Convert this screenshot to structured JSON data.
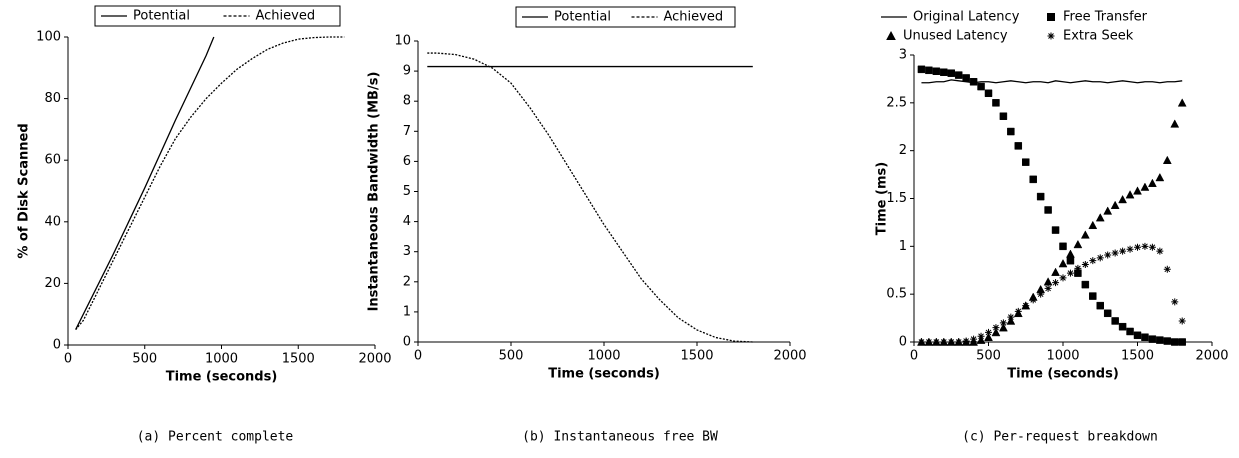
{
  "chart_data": [
    {
      "type": "line",
      "caption": "(a) Percent complete",
      "xlabel": "Time (seconds)",
      "ylabel": "% of Disk Scanned",
      "xlim": [
        0,
        2000
      ],
      "xticks": [
        0,
        500,
        1000,
        1500,
        2000
      ],
      "ylim": [
        0,
        100
      ],
      "yticks": [
        0,
        20,
        40,
        60,
        80,
        100
      ],
      "legend": "top",
      "legend_box": true,
      "legend_columns": 2,
      "series": [
        {
          "name": "Potential",
          "color": "#000000",
          "line_style": "solid",
          "x": [
            50,
            300,
            500,
            700,
            900,
            950
          ],
          "values": [
            5,
            30,
            51,
            73,
            94,
            100
          ]
        },
        {
          "name": "Achieved",
          "color": "#000000",
          "line_style": "dotted",
          "x": [
            50,
            100,
            200,
            300,
            400,
            500,
            600,
            700,
            800,
            900,
            1000,
            1100,
            1200,
            1300,
            1400,
            1500,
            1600,
            1700,
            1800
          ],
          "values": [
            5,
            8,
            18,
            28,
            38,
            48,
            58,
            67,
            74,
            80,
            85,
            89.5,
            93,
            96,
            98,
            99.3,
            99.8,
            100,
            100
          ]
        }
      ]
    },
    {
      "type": "line",
      "caption": "(b) Instantaneous free BW",
      "xlabel": "Time (seconds)",
      "ylabel": "Instantaneous Bandwidth (MB/s)",
      "xlim": [
        0,
        2000
      ],
      "xticks": [
        0,
        500,
        1000,
        1500,
        2000
      ],
      "ylim": [
        0,
        10
      ],
      "yticks": [
        0,
        1,
        2,
        3,
        4,
        5,
        6,
        7,
        8,
        9,
        10
      ],
      "legend": "top",
      "legend_box": true,
      "legend_columns": 2,
      "series": [
        {
          "name": "Potential",
          "color": "#000000",
          "line_style": "solid",
          "x": [
            50,
            1800
          ],
          "values": [
            9.15,
            9.15
          ]
        },
        {
          "name": "Achieved",
          "color": "#000000",
          "line_style": "dotted",
          "x": [
            50,
            100,
            200,
            300,
            400,
            500,
            600,
            700,
            800,
            900,
            1000,
            1100,
            1200,
            1300,
            1400,
            1500,
            1600,
            1700,
            1800
          ],
          "values": [
            9.6,
            9.6,
            9.55,
            9.4,
            9.1,
            8.6,
            7.8,
            6.9,
            5.9,
            4.9,
            3.9,
            3.0,
            2.1,
            1.4,
            0.8,
            0.4,
            0.15,
            0.03,
            0
          ]
        }
      ]
    },
    {
      "type": "line",
      "caption": "(c) Per-request breakdown",
      "xlabel": "Time (seconds)",
      "ylabel": "Time (ms)",
      "xlim": [
        0,
        2000
      ],
      "xticks": [
        0,
        500,
        1000,
        1500,
        2000
      ],
      "ylim": [
        0,
        3
      ],
      "yticks": [
        0,
        0.5,
        1,
        1.5,
        2,
        2.5,
        3
      ],
      "legend": "top",
      "legend_box": false,
      "legend_columns": 2,
      "x": [
        50,
        100,
        150,
        200,
        250,
        300,
        350,
        400,
        450,
        500,
        550,
        600,
        650,
        700,
        750,
        800,
        850,
        900,
        950,
        1000,
        1050,
        1100,
        1150,
        1200,
        1250,
        1300,
        1350,
        1400,
        1450,
        1500,
        1550,
        1600,
        1650,
        1700,
        1750,
        1800
      ],
      "series": [
        {
          "name": "Original Latency",
          "color": "#000000",
          "line_style": "solid",
          "values": [
            2.71,
            2.71,
            2.72,
            2.72,
            2.74,
            2.73,
            2.72,
            2.71,
            2.72,
            2.72,
            2.71,
            2.72,
            2.73,
            2.72,
            2.71,
            2.72,
            2.72,
            2.71,
            2.73,
            2.72,
            2.71,
            2.72,
            2.73,
            2.72,
            2.72,
            2.71,
            2.72,
            2.73,
            2.72,
            2.71,
            2.72,
            2.72,
            2.71,
            2.72,
            2.72,
            2.73
          ]
        },
        {
          "name": "Free Transfer",
          "color": "#000000",
          "marker": "square",
          "values": [
            2.85,
            2.84,
            2.83,
            2.82,
            2.81,
            2.79,
            2.76,
            2.72,
            2.67,
            2.6,
            2.5,
            2.36,
            2.2,
            2.05,
            1.88,
            1.7,
            1.52,
            1.38,
            1.17,
            1.0,
            0.85,
            0.72,
            0.6,
            0.48,
            0.38,
            0.3,
            0.22,
            0.16,
            0.11,
            0.07,
            0.05,
            0.03,
            0.02,
            0.01,
            0.0,
            0.0
          ]
        },
        {
          "name": "Unused Latency",
          "color": "#000000",
          "marker": "triangle",
          "values": [
            0,
            0,
            0,
            0,
            0,
            0,
            0,
            0,
            0.02,
            0.05,
            0.1,
            0.15,
            0.22,
            0.3,
            0.38,
            0.47,
            0.55,
            0.63,
            0.73,
            0.82,
            0.92,
            1.02,
            1.12,
            1.22,
            1.3,
            1.37,
            1.43,
            1.49,
            1.54,
            1.58,
            1.62,
            1.66,
            1.72,
            1.9,
            2.28,
            2.5
          ]
        },
        {
          "name": "Extra Seek",
          "color": "#000000",
          "marker": "star",
          "values": [
            0,
            0,
            0,
            0,
            0,
            0,
            0.01,
            0.03,
            0.06,
            0.1,
            0.15,
            0.2,
            0.26,
            0.32,
            0.38,
            0.44,
            0.5,
            0.56,
            0.62,
            0.67,
            0.72,
            0.77,
            0.81,
            0.85,
            0.88,
            0.91,
            0.93,
            0.95,
            0.97,
            0.99,
            1.0,
            0.99,
            0.95,
            0.76,
            0.42,
            0.22
          ]
        }
      ]
    }
  ]
}
